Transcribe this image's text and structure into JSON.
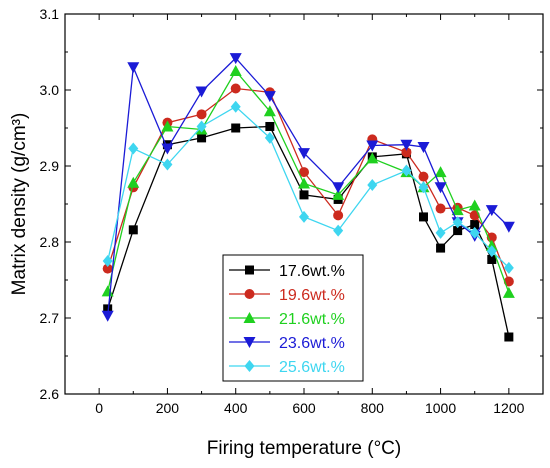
{
  "chart_data": {
    "type": "line",
    "xlabel": "Firing temperature (°C)",
    "ylabel": "Matrix density (g/cm³)",
    "xlim": [
      -100,
      1300
    ],
    "ylim": [
      2.6,
      3.1
    ],
    "xticks": [
      0,
      200,
      400,
      600,
      800,
      1000,
      1200
    ],
    "yticks": [
      2.6,
      2.7,
      2.8,
      2.9,
      3.0,
      3.1
    ],
    "xtick_labels": [
      "0",
      "200",
      "400",
      "600",
      "800",
      "1000",
      "1200"
    ],
    "ytick_labels": [
      "2.6",
      "2.7",
      "2.8",
      "2.9",
      "3.0",
      "3.1"
    ],
    "grid": false,
    "legend_position": "lower-center",
    "x": [
      25,
      100,
      200,
      300,
      400,
      500,
      600,
      700,
      800,
      900,
      950,
      1000,
      1050,
      1100,
      1150,
      1200
    ],
    "series": [
      {
        "name": "17.6wt.%",
        "color": "#000000",
        "marker": "square",
        "values": [
          2.712,
          2.816,
          2.928,
          2.937,
          2.95,
          2.952,
          2.862,
          2.856,
          2.912,
          2.916,
          2.833,
          2.792,
          2.815,
          2.823,
          2.777,
          2.675
        ]
      },
      {
        "name": "19.6wt.%",
        "color": "#cc2a1e",
        "marker": "circle",
        "values": [
          2.765,
          2.872,
          2.957,
          2.968,
          3.002,
          2.997,
          2.892,
          2.835,
          2.935,
          2.918,
          2.886,
          2.844,
          2.845,
          2.835,
          2.806,
          2.748
        ]
      },
      {
        "name": "21.6wt.%",
        "color": "#1fd01f",
        "marker": "triangle-up",
        "values": [
          2.735,
          2.878,
          2.952,
          2.948,
          3.025,
          2.972,
          2.877,
          2.862,
          2.91,
          2.892,
          2.872,
          2.892,
          2.842,
          2.848,
          2.795,
          2.733
        ]
      },
      {
        "name": "23.6wt.%",
        "color": "#1b1bd6",
        "marker": "triangle-down",
        "values": [
          2.703,
          3.03,
          2.923,
          2.998,
          3.042,
          2.992,
          2.917,
          2.872,
          2.927,
          2.928,
          2.925,
          2.872,
          2.826,
          2.808,
          2.842,
          2.82
        ]
      },
      {
        "name": "25.6wt.%",
        "color": "#3ed6f0",
        "marker": "diamond",
        "values": [
          2.775,
          2.923,
          2.902,
          2.952,
          2.978,
          2.937,
          2.833,
          2.815,
          2.875,
          2.894,
          2.872,
          2.812,
          2.826,
          2.812,
          2.788,
          2.766
        ]
      }
    ]
  }
}
